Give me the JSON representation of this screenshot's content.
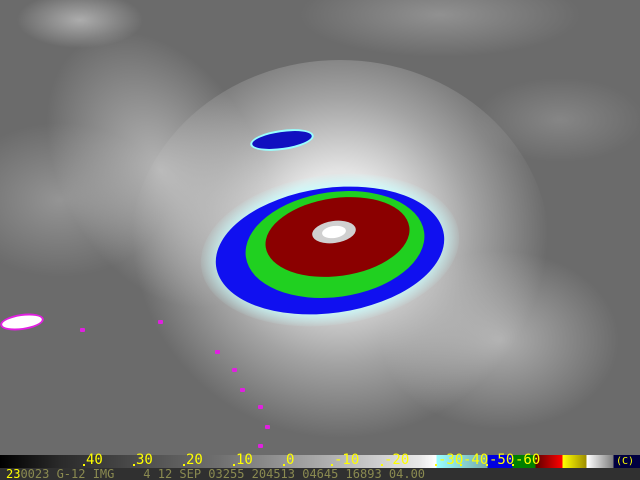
{
  "image": {
    "subject": "hurricane-infrared-satellite",
    "colors": {
      "background": "#6b6b6b",
      "cyan": "#99ffff",
      "blue": "#0000e0",
      "green": "#00c000",
      "red": "#8b0000",
      "eye": "#ffffff",
      "islands": "#e020e0"
    }
  },
  "colorbar": {
    "labels": [
      "40",
      "30",
      "20",
      "10",
      "0",
      "-10",
      "-20",
      "-30",
      "-40",
      "-50",
      "-60"
    ],
    "copyright": "(C)"
  },
  "info_line": {
    "frame_number": "23",
    "text": "0023 G-12 IMG    4 12 SEP 03255 204513 04645 16893 04.00"
  }
}
